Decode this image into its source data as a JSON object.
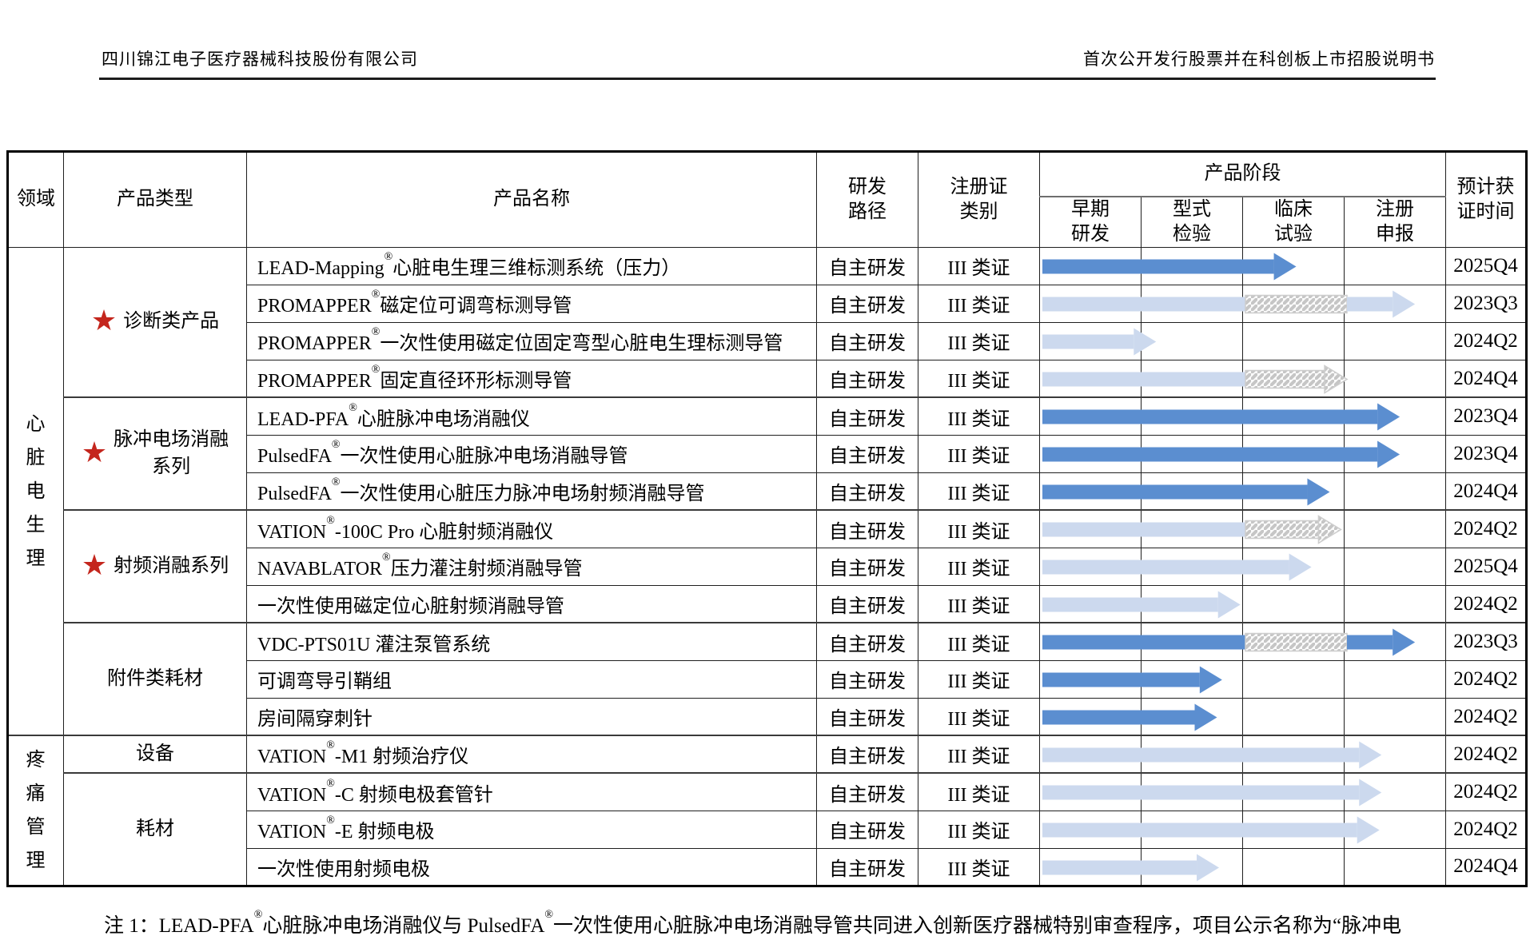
{
  "page_header": {
    "left": "四川锦江电子医疗器械科技股份有限公司",
    "right": "首次公开发行股票并在科创板上市招股说明书"
  },
  "colors": {
    "arrow_dark": "#5b8ed0",
    "arrow_light": "#ccd9ee",
    "hatch_stripe": "#c6c6c6",
    "hatch_bg": "#fbfbfb",
    "hatch_border": "#cdcdcd",
    "star_red": "#c4261d"
  },
  "table": {
    "columns": {
      "area": "领域",
      "type": "产品类型",
      "name": "产品名称",
      "path": "研发\n路径",
      "cert": "注册证\n类别",
      "stage": "产品阶段",
      "time": "预计获\n证时间"
    },
    "stage_columns": [
      "早期\n研发",
      "型式\n检验",
      "临床\n试验",
      "注册\n申报"
    ],
    "area_groups": [
      {
        "label": "心脏电生理",
        "rows": 13
      },
      {
        "label": "疼痛管理",
        "rows": 4
      }
    ],
    "type_groups": [
      {
        "label": "诊断类产品",
        "star": true,
        "rows": 4
      },
      {
        "label": "脉冲电场消融\n系列",
        "star": true,
        "rows": 3
      },
      {
        "label": "射频消融系列",
        "star": true,
        "rows": 3
      },
      {
        "label": "附件类耗材",
        "star": false,
        "rows": 3
      },
      {
        "label": "设备",
        "star": false,
        "rows": 1
      },
      {
        "label": "耗材",
        "star": false,
        "rows": 3
      }
    ],
    "rows": [
      {
        "name": "LEAD-Mapping®心脏电生理三维标测系统（压力）",
        "path": "自主研发",
        "cert": "III 类证",
        "time": "2025Q4",
        "arrow": {
          "color": "dark",
          "segments": [
            {
              "kind": "bar",
              "from": 0,
              "to": 2.28
            }
          ],
          "head": "solid"
        }
      },
      {
        "name": "PROMAPPER®磁定位可调弯标测导管",
        "path": "自主研发",
        "cert": "III 类证",
        "time": "2023Q3",
        "arrow": {
          "color": "light",
          "segments": [
            {
              "kind": "bar",
              "from": 0,
              "to": 2.0
            },
            {
              "kind": "hatch",
              "from": 2.0,
              "to": 3.0
            },
            {
              "kind": "bar",
              "from": 3.0,
              "to": 3.45
            }
          ],
          "head": "solid"
        }
      },
      {
        "name": "PROMAPPER®一次性使用磁定位固定弯型心脏电生理标测导管",
        "path": "自主研发",
        "cert": "III 类证",
        "time": "2024Q2",
        "arrow": {
          "color": "light",
          "segments": [
            {
              "kind": "bar",
              "from": 0,
              "to": 0.9
            }
          ],
          "head": "solid"
        }
      },
      {
        "name": "PROMAPPER®固定直径环形标测导管",
        "path": "自主研发",
        "cert": "III 类证",
        "time": "2024Q4",
        "arrow": {
          "color": "light",
          "segments": [
            {
              "kind": "bar",
              "from": 0,
              "to": 2.0
            },
            {
              "kind": "hatch",
              "from": 2.0,
              "to": 2.78
            }
          ],
          "head": "hatch"
        }
      },
      {
        "name": "LEAD-PFA®心脏脉冲电场消融仪",
        "path": "自主研发",
        "cert": "III 类证",
        "time": "2023Q4",
        "arrow": {
          "color": "dark",
          "segments": [
            {
              "kind": "bar",
              "from": 0,
              "to": 3.3
            }
          ],
          "head": "solid"
        }
      },
      {
        "name": "PulsedFA®一次性使用心脏脉冲电场消融导管",
        "path": "自主研发",
        "cert": "III 类证",
        "time": "2023Q4",
        "arrow": {
          "color": "dark",
          "segments": [
            {
              "kind": "bar",
              "from": 0,
              "to": 3.3
            }
          ],
          "head": "solid"
        }
      },
      {
        "name": "PulsedFA®一次性使用心脏压力脉冲电场射频消融导管",
        "path": "自主研发",
        "cert": "III 类证",
        "time": "2024Q4",
        "arrow": {
          "color": "dark",
          "segments": [
            {
              "kind": "bar",
              "from": 0,
              "to": 2.61
            }
          ],
          "head": "solid"
        }
      },
      {
        "name": "VATION®-100C Pro 心脏射频消融仪",
        "path": "自主研发",
        "cert": "III 类证",
        "time": "2024Q2",
        "arrow": {
          "color": "light",
          "segments": [
            {
              "kind": "bar",
              "from": 0,
              "to": 2.0
            },
            {
              "kind": "hatch",
              "from": 2.0,
              "to": 2.72
            }
          ],
          "head": "hatch"
        }
      },
      {
        "name": "NAVABLATOR®压力灌注射频消融导管",
        "path": "自主研发",
        "cert": "III 类证",
        "time": "2025Q4",
        "arrow": {
          "color": "light",
          "segments": [
            {
              "kind": "bar",
              "from": 0,
              "to": 2.43
            }
          ],
          "head": "solid"
        }
      },
      {
        "name": "一次性使用磁定位心脏射频消融导管",
        "path": "自主研发",
        "cert": "III 类证",
        "time": "2024Q2",
        "arrow": {
          "color": "light",
          "segments": [
            {
              "kind": "bar",
              "from": 0,
              "to": 1.73
            }
          ],
          "head": "solid"
        }
      },
      {
        "name": "VDC-PTS01U 灌注泵管系统",
        "path": "自主研发",
        "cert": "III 类证",
        "time": "2023Q3",
        "arrow": {
          "color": "dark",
          "segments": [
            {
              "kind": "bar",
              "from": 0,
              "to": 2.0
            },
            {
              "kind": "hatch",
              "from": 2.0,
              "to": 3.0
            },
            {
              "kind": "bar",
              "from": 3.0,
              "to": 3.45
            }
          ],
          "head": "solid"
        }
      },
      {
        "name": "可调弯导引鞘组",
        "path": "自主研发",
        "cert": "III 类证",
        "time": "2024Q2",
        "arrow": {
          "color": "dark",
          "segments": [
            {
              "kind": "bar",
              "from": 0,
              "to": 1.55
            }
          ],
          "head": "solid"
        }
      },
      {
        "name": "房间隔穿刺针",
        "path": "自主研发",
        "cert": "III 类证",
        "time": "2024Q2",
        "arrow": {
          "color": "dark",
          "segments": [
            {
              "kind": "bar",
              "from": 0,
              "to": 1.5
            }
          ],
          "head": "solid"
        }
      },
      {
        "name": "VATION®-M1 射频治疗仪",
        "path": "自主研发",
        "cert": "III 类证",
        "time": "2024Q2",
        "arrow": {
          "color": "light",
          "segments": [
            {
              "kind": "bar",
              "from": 0,
              "to": 3.12
            }
          ],
          "head": "solid"
        }
      },
      {
        "name": "VATION®-C 射频电极套管针",
        "path": "自主研发",
        "cert": "III 类证",
        "time": "2024Q2",
        "arrow": {
          "color": "light",
          "segments": [
            {
              "kind": "bar",
              "from": 0,
              "to": 3.12
            }
          ],
          "head": "solid"
        }
      },
      {
        "name": "VATION®-E 射频电极",
        "path": "自主研发",
        "cert": "III 类证",
        "time": "2024Q2",
        "arrow": {
          "color": "light",
          "segments": [
            {
              "kind": "bar",
              "from": 0,
              "to": 3.1
            }
          ],
          "head": "solid"
        }
      },
      {
        "name": "一次性使用射频电极",
        "path": "自主研发",
        "cert": "III 类证",
        "time": "2024Q4",
        "arrow": {
          "color": "light",
          "segments": [
            {
              "kind": "bar",
              "from": 0,
              "to": 1.52
            }
          ],
          "head": "solid"
        }
      }
    ]
  },
  "footnote": "注 1：LEAD-PFA®心脏脉冲电场消融仪与 PulsedFA®一次性使用心脏脉冲电场消融导管共同进入创新医疗器械特别审查程序，项目公示名称为“脉冲电"
}
